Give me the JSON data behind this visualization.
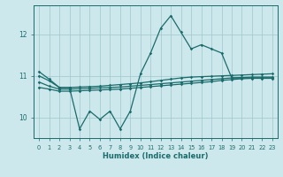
{
  "title": "",
  "xlabel": "Humidex (Indice chaleur)",
  "bg_color": "#cde8ec",
  "grid_color": "#9dc8cc",
  "line_color": "#1a6b6b",
  "xlim": [
    -0.5,
    23.5
  ],
  "ylim": [
    9.5,
    12.7
  ],
  "yticks": [
    10,
    11,
    12
  ],
  "xticks": [
    0,
    1,
    2,
    3,
    4,
    5,
    6,
    7,
    8,
    9,
    10,
    11,
    12,
    13,
    14,
    15,
    16,
    17,
    18,
    19,
    20,
    21,
    22,
    23
  ],
  "x": [
    0,
    1,
    2,
    3,
    4,
    5,
    6,
    7,
    8,
    9,
    10,
    11,
    12,
    13,
    14,
    15,
    16,
    17,
    18,
    19,
    20,
    21,
    22,
    23
  ],
  "line1": [
    11.1,
    10.92,
    10.72,
    10.72,
    9.72,
    10.15,
    9.95,
    10.15,
    9.72,
    10.15,
    11.05,
    11.55,
    12.15,
    12.45,
    12.05,
    11.65,
    11.75,
    11.65,
    11.55,
    10.95,
    10.95,
    10.95,
    10.95,
    10.95
  ],
  "line2": [
    11.0,
    10.88,
    10.72,
    10.72,
    10.73,
    10.74,
    10.75,
    10.77,
    10.79,
    10.81,
    10.83,
    10.86,
    10.89,
    10.92,
    10.95,
    10.97,
    10.98,
    10.99,
    11.0,
    11.01,
    11.02,
    11.03,
    11.04,
    11.05
  ],
  "line3": [
    10.85,
    10.75,
    10.68,
    10.68,
    10.69,
    10.7,
    10.71,
    10.72,
    10.73,
    10.75,
    10.77,
    10.79,
    10.81,
    10.83,
    10.85,
    10.87,
    10.89,
    10.91,
    10.93,
    10.95,
    10.96,
    10.97,
    10.97,
    10.97
  ],
  "line4": [
    10.72,
    10.68,
    10.63,
    10.63,
    10.64,
    10.65,
    10.66,
    10.67,
    10.68,
    10.7,
    10.72,
    10.74,
    10.76,
    10.78,
    10.8,
    10.82,
    10.84,
    10.86,
    10.89,
    10.91,
    10.93,
    10.94,
    10.94,
    10.94
  ]
}
